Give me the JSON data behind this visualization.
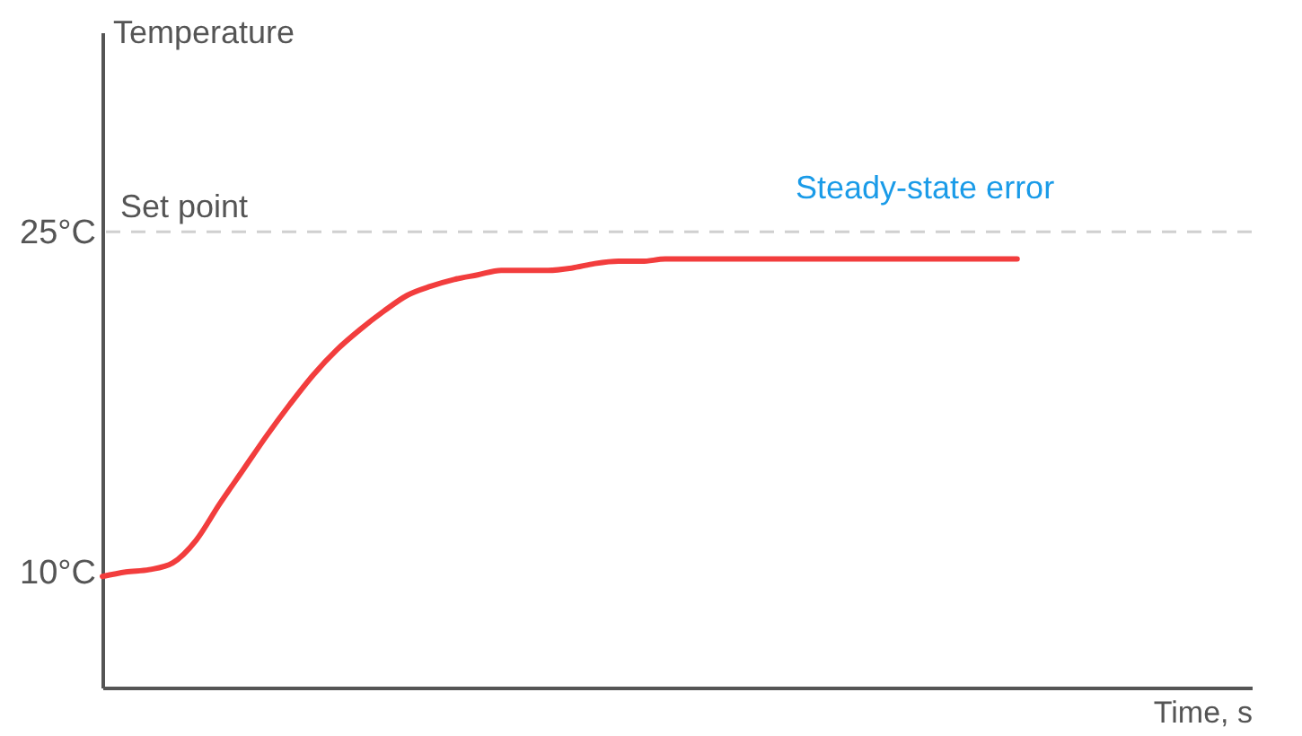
{
  "chart_data": {
    "type": "line",
    "xlabel": "Time, s",
    "ylabel": "Temperature",
    "categories": [
      null,
      null,
      null,
      null,
      null,
      null,
      null,
      null,
      null,
      null,
      null,
      null,
      null,
      null,
      null,
      null,
      null,
      null,
      null,
      null,
      null,
      null,
      null,
      null,
      null,
      null,
      null,
      null,
      null,
      null,
      null,
      null,
      null,
      null,
      null,
      null,
      null,
      null,
      null,
      null,
      null,
      null,
      null,
      null,
      null,
      null,
      null,
      null,
      null,
      null
    ],
    "series": [
      {
        "color": "#f23d3d",
        "values": [
          9.8,
          10.0,
          10.1,
          10.4,
          11.4,
          13.0,
          14.5,
          16.0,
          17.4,
          18.7,
          19.8,
          20.7,
          21.5,
          22.2,
          22.6,
          22.9,
          23.1,
          23.3,
          23.3,
          23.3,
          23.4,
          23.6,
          23.7,
          23.7,
          23.8,
          23.8,
          23.8,
          23.8,
          23.8,
          23.8,
          23.8,
          23.8,
          23.8,
          23.8,
          23.8,
          23.8,
          23.8,
          23.8,
          23.8,
          23.8,
          null,
          null,
          null,
          null,
          null,
          null,
          null,
          null,
          null,
          null
        ]
      }
    ],
    "ylim": [
      4.9,
      33.8
    ],
    "yticks": [
      {
        "value": 10,
        "label": "10°C"
      },
      {
        "value": 25,
        "label": "25°C"
      }
    ],
    "ref_lines": [
      {
        "axis": "y",
        "value": 25,
        "label": "Set point",
        "color": "#d0d0d0",
        "line_style": "dashed"
      }
    ],
    "annotations": [
      {
        "text": "Steady-state error",
        "y": 23.8
      }
    ],
    "grid": false,
    "marker": "none",
    "line_style": "solid"
  }
}
